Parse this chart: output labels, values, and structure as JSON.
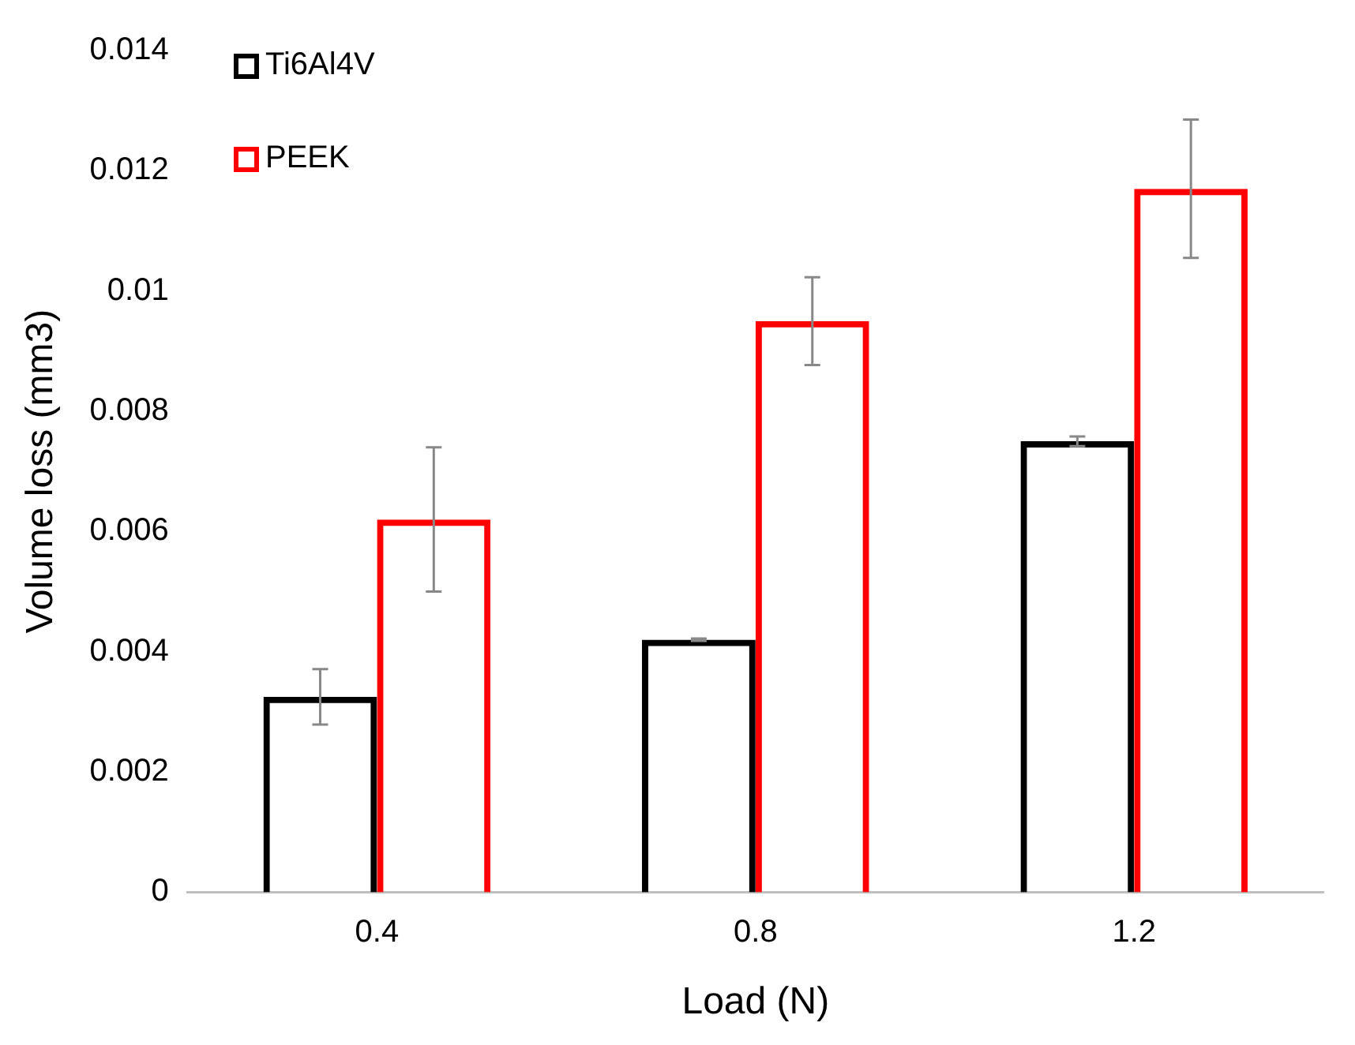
{
  "chart_data": {
    "type": "bar",
    "xlabel": "Load (N)",
    "ylabel": "Volume loss (mm3)",
    "categories": [
      "0.4",
      "0.8",
      "1.2"
    ],
    "series": [
      {
        "name": "Ti6Al4V",
        "color": "#000000",
        "values": [
          0.00325,
          0.0042,
          0.0075
        ],
        "errors": [
          0.00046,
          2e-05,
          8e-05
        ]
      },
      {
        "name": "PEEK",
        "color": "#ff0000",
        "values": [
          0.0062,
          0.0095,
          0.0117
        ],
        "errors": [
          0.0012,
          0.00073,
          0.00115
        ]
      }
    ],
    "ylim": [
      0,
      0.014
    ],
    "yticks": [
      0,
      0.002,
      0.004,
      0.006,
      0.008,
      0.01,
      0.012,
      0.014
    ],
    "grid": false,
    "legend": "top left"
  }
}
